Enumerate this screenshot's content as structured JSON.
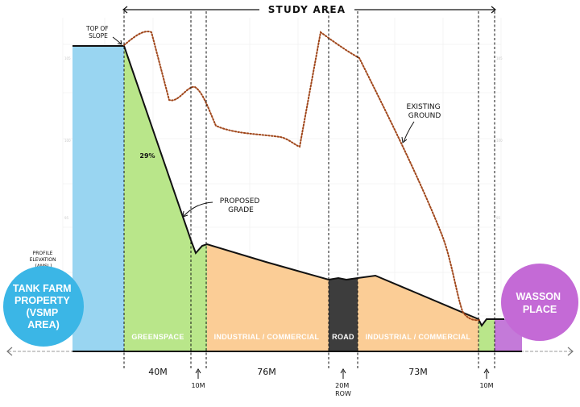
{
  "header": {
    "study_area": "STUDY AREA"
  },
  "annotations": {
    "top_of_slope": [
      "TOP OF",
      "SLOPE"
    ],
    "slope_percent": "29%",
    "proposed_grade": [
      "PROPOSED",
      "GRADE"
    ],
    "existing_ground": [
      "EXISTING",
      "GROUND"
    ],
    "profile_elevation": [
      "PROFILE",
      "ELEVATION",
      "(AMSL)"
    ]
  },
  "bubbles": {
    "left": [
      "TANK FARM",
      "PROPERTY",
      "(VSMP",
      "AREA)"
    ],
    "right": [
      "WASSON",
      "PLACE"
    ]
  },
  "zones": [
    {
      "label": "GREENSPACE",
      "color": "#b9e68a"
    },
    {
      "label": "INDUSTRIAL / COMMERCIAL",
      "color": "#fbcd96"
    },
    {
      "label": "ROAD",
      "color": "#3d3d3d"
    },
    {
      "label": "INDUSTRIAL / COMMERCIAL",
      "color": "#fbcd96"
    }
  ],
  "dimensions": {
    "greenspace_width": "40M",
    "buffer_left": "10M",
    "industrial_left_width": "76M",
    "row_width": [
      "20M",
      "ROW"
    ],
    "industrial_right_width": "73M",
    "buffer_right": "10M"
  },
  "colors": {
    "tank_farm_fill": "#99d5f1",
    "left_bubble": "#3bb6e6",
    "right_bubble": "#c46ad6",
    "wasson_strip": "#c47ad9",
    "existing_ground_line": "#a0461a"
  }
}
